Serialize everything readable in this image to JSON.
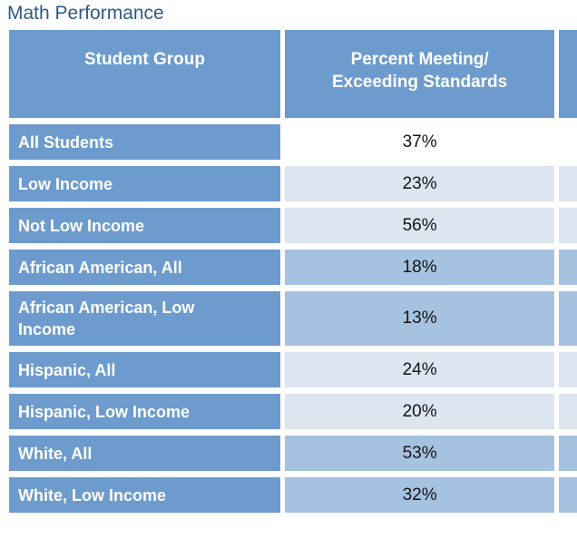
{
  "title": "Math Performance",
  "colors": {
    "title_text": "#2D5A87",
    "header_bg": "#6D9BCD",
    "row_label_bg": "#6D9BCD",
    "band_light": "#DCE6F1",
    "band_medium": "#A6C2E1",
    "band_white": "#FFFFFF",
    "header_text": "#FFFFFF",
    "value_text": "#141414"
  },
  "table": {
    "header": {
      "student_group": "Student Group",
      "percent_line1": "Percent Meeting/",
      "percent_line2": "Exceeding Standards"
    },
    "rows": [
      {
        "group": "All Students",
        "value": "37%"
      },
      {
        "group": "Low Income",
        "value": "23%"
      },
      {
        "group": "Not Low Income",
        "value": "56%"
      },
      {
        "group": "African American, All",
        "value": "18%"
      },
      {
        "group": "African American, Low Income",
        "value": "13%"
      },
      {
        "group": "Hispanic, All",
        "value": "24%"
      },
      {
        "group": "Hispanic, Low Income",
        "value": "20%"
      },
      {
        "group": "White, All",
        "value": "53%"
      },
      {
        "group": "White, Low Income",
        "value": "32%"
      }
    ]
  },
  "chart_data": {
    "type": "table",
    "title": "Math Performance",
    "columns": [
      "Student Group",
      "Percent Meeting/ Exceeding Standards"
    ],
    "categories": [
      "All Students",
      "Low Income",
      "Not Low Income",
      "African American, All",
      "African American, Low Income",
      "Hispanic, All",
      "Hispanic, Low Income",
      "White, All",
      "White, Low Income"
    ],
    "values": [
      37,
      23,
      56,
      18,
      13,
      24,
      20,
      53,
      32
    ],
    "unit": "%"
  }
}
